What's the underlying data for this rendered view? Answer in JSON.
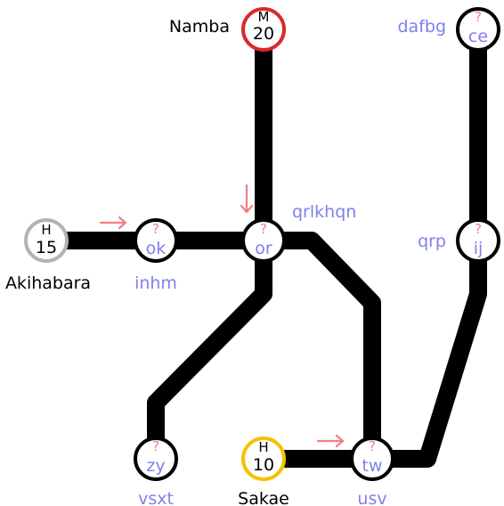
{
  "colors": {
    "known_label": "#000000",
    "unknown_label": "#7f7fee",
    "question_mark": "#f08080",
    "arrow": "#f08080",
    "line": "#000000"
  },
  "stations": [
    {
      "id": "namba",
      "top": "M",
      "bottom": "20",
      "label": "Namba",
      "ring": "#d82a2a",
      "known": true
    },
    {
      "id": "akihabara",
      "top": "H",
      "bottom": "15",
      "label": "Akihabara",
      "ring": "#b3b3b3",
      "known": true
    },
    {
      "id": "sakae",
      "top": "H",
      "bottom": "10",
      "label": "Sakae",
      "ring": "#f2c200",
      "known": true
    },
    {
      "id": "ok",
      "top": "?",
      "bottom": "ok",
      "label": "inhm",
      "ring": "#000000",
      "known": false
    },
    {
      "id": "or",
      "top": "?",
      "bottom": "or",
      "label": "qrlkhqn",
      "ring": "#000000",
      "known": false
    },
    {
      "id": "zy",
      "top": "?",
      "bottom": "zy",
      "label": "vsxt",
      "ring": "#000000",
      "known": false
    },
    {
      "id": "tw",
      "top": "?",
      "bottom": "tw",
      "label": "usv",
      "ring": "#000000",
      "known": false
    },
    {
      "id": "ij",
      "top": "?",
      "bottom": "ij",
      "label": "qrp",
      "ring": "#000000",
      "known": false
    },
    {
      "id": "ce",
      "top": "?",
      "bottom": "ce",
      "label": "dafbg",
      "ring": "#000000",
      "known": false
    }
  ],
  "arrows": [
    {
      "id": "arrow-to-ok",
      "direction": "right"
    },
    {
      "id": "arrow-to-or",
      "direction": "down"
    },
    {
      "id": "arrow-to-tw",
      "direction": "right"
    }
  ]
}
